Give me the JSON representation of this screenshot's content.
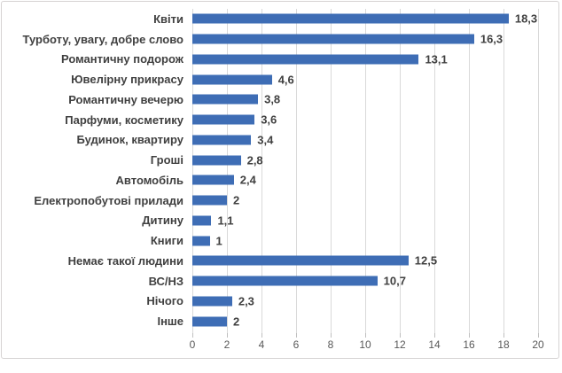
{
  "chart_data": {
    "type": "bar",
    "orientation": "horizontal",
    "title": "",
    "xlabel": "",
    "ylabel": "",
    "categories": [
      "Квіти",
      "Турботу, увагу, добре слово",
      "Романтичну подорож",
      "Ювелірну прикрасу",
      "Романтичну вечерю",
      "Парфуми, косметику",
      "Будинок, квартиру",
      "Гроші",
      "Автомобіль",
      "Електропобутові прилади",
      "Дитину",
      "Книги",
      "Немає такої людини",
      "ВС/НЗ",
      "Нічого",
      "Інше"
    ],
    "values": [
      18.3,
      16.3,
      13.1,
      4.6,
      3.8,
      3.6,
      3.4,
      2.8,
      2.4,
      2,
      1.1,
      1,
      12.5,
      10.7,
      2.3,
      2
    ],
    "value_labels": [
      "18,3",
      "16,3",
      "13,1",
      "4,6",
      "3,8",
      "3,6",
      "3,4",
      "2,8",
      "2,4",
      "2",
      "1,1",
      "1",
      "12,5",
      "10,7",
      "2,3",
      "2"
    ],
    "xlim": [
      0,
      20
    ],
    "x_ticks": [
      "0",
      "2",
      "4",
      "6",
      "8",
      "10",
      "12",
      "14",
      "16",
      "18",
      "20"
    ],
    "grid": true,
    "legend_position": "none"
  },
  "style": {
    "bar_color": "#3e6db5",
    "grid_color": "#d9d9d9",
    "category_label_color": "#404040",
    "value_label_color": "#404040",
    "tick_label_color": "#595959",
    "border_color": "#d6d3d3",
    "background": "#ffffff"
  }
}
